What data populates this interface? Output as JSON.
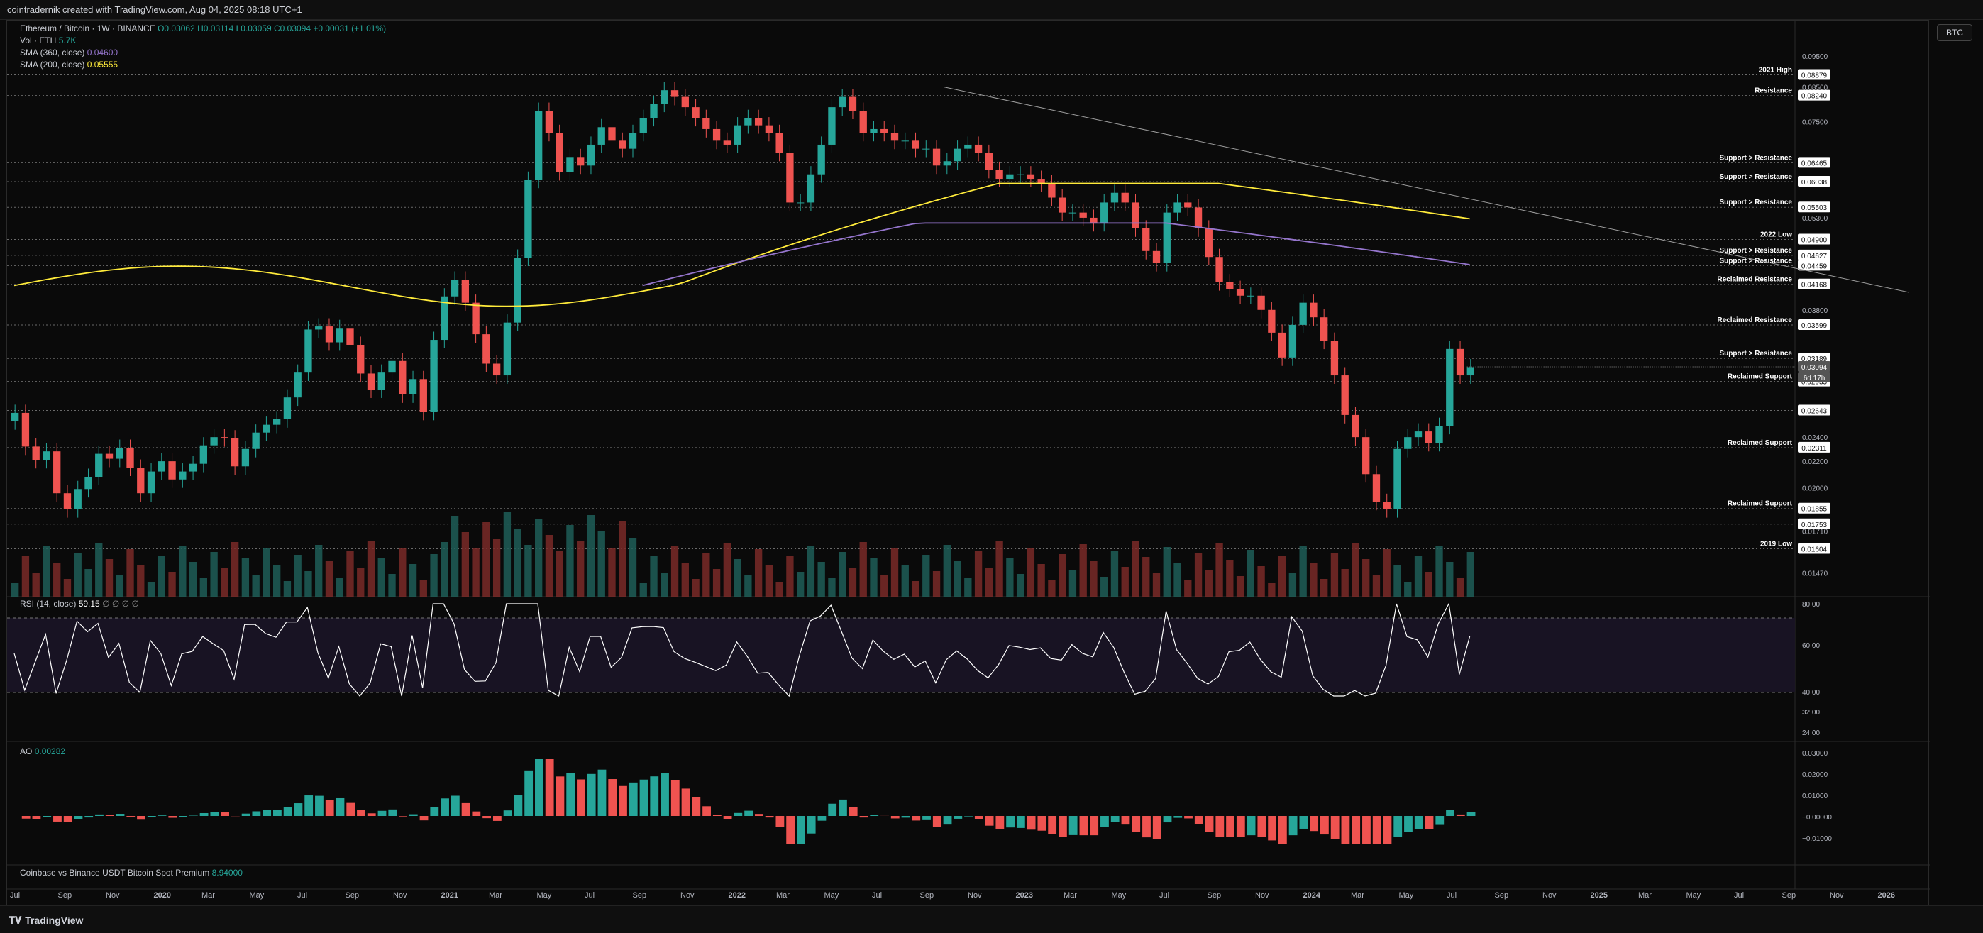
{
  "header": {
    "title": "cointradernik created with TradingView.com, Aug 04, 2025 08:18 UTC+1"
  },
  "legend": {
    "symbol": "Ethereum / Bitcoin · 1W · BINANCE",
    "ohlc": "O0.03062  H0.03114  L0.03059  C0.03094  +0.00031 (+1.01%)",
    "vol_label": "Vol · ETH",
    "vol_value": "5.7K",
    "sma360_label": "SMA (360, close)",
    "sma360_value": "0.04600",
    "sma200_label": "SMA (200, close)",
    "sma200_value": "0.05555"
  },
  "rsi_legend": "RSI (14, close)",
  "rsi_value": "59.15",
  "rsi_extra": "∅ ∅ ∅ ∅",
  "ao_legend": "AO",
  "ao_value": "0.00282",
  "premium_legend": "Coinbase vs Binance USDT Bitcoin Spot Premium",
  "premium_value": "8.94000",
  "btc_button": "BTC",
  "countdown": "6d 17h",
  "footer_logo": "TradingView",
  "colors": {
    "up": "#26a69a",
    "down": "#ef5350",
    "sma200": "#ffeb3b",
    "sma360": "#9575cd",
    "rsi": "#ffffff",
    "background": "#0a0a0a"
  },
  "chart_data": {
    "type": "candlestick",
    "title": "Ethereum / Bitcoin · 1W · BINANCE",
    "x_ticks": [
      "Jul",
      "Sep",
      "Nov",
      "2020",
      "Mar",
      "May",
      "Jul",
      "Sep",
      "Nov",
      "2021",
      "Mar",
      "May",
      "Jul",
      "Sep",
      "Nov",
      "2022",
      "Mar",
      "May",
      "Jul",
      "Sep",
      "Nov",
      "2023",
      "Mar",
      "May",
      "Jul",
      "Sep",
      "Nov",
      "2024",
      "Mar",
      "May",
      "Jul",
      "Sep",
      "Nov",
      "2025",
      "Mar",
      "May",
      "Jul",
      "Sep",
      "Nov",
      "2026"
    ],
    "y_ticks": [
      "0.09500",
      "0.08500",
      "0.07500",
      "0.05300",
      "0.03800",
      "0.02400",
      "0.02200",
      "0.02000",
      "0.01710",
      "0.01470"
    ],
    "price_levels": [
      {
        "label": "2021 High",
        "value": "0.08879"
      },
      {
        "label": "Resistance",
        "value": "0.08240"
      },
      {
        "label": "Support > Resistance",
        "value": "0.06465"
      },
      {
        "label": "Support > Resistance",
        "value": "0.06038"
      },
      {
        "label": "Support > Resistance",
        "value": "0.05503"
      },
      {
        "label": "2022 Low",
        "value": "0.04900"
      },
      {
        "label": "Support > Resistance",
        "value": "0.04627"
      },
      {
        "label": "Support > Resistance",
        "value": "0.04459"
      },
      {
        "label": "Reclaimed Resistance",
        "value": "0.04168"
      },
      {
        "label": "Reclaimed Resistance",
        "value": "0.03599"
      },
      {
        "label": "Support > Resistance",
        "value": "0.03189"
      },
      {
        "label": "Reclaimed Support",
        "value": "0.02935"
      },
      {
        "label": "",
        "value": "0.02643"
      },
      {
        "label": "Reclaimed Support",
        "value": "0.02311"
      },
      {
        "label": "Reclaimed Support",
        "value": "0.01855"
      },
      {
        "label": "",
        "value": "0.01753"
      },
      {
        "label": "2019 Low",
        "value": "0.01604"
      }
    ],
    "current_price": "0.03094",
    "close_path": [
      0.0262,
      0.0232,
      0.0221,
      0.0228,
      0.0196,
      0.0185,
      0.0199,
      0.0208,
      0.0226,
      0.0222,
      0.0231,
      0.0215,
      0.0196,
      0.0212,
      0.022,
      0.0206,
      0.0212,
      0.0218,
      0.0233,
      0.024,
      0.0239,
      0.0216,
      0.023,
      0.0244,
      0.0251,
      0.0256,
      0.0277,
      0.0303,
      0.0354,
      0.0358,
      0.0338,
      0.0356,
      0.0335,
      0.0302,
      0.0285,
      0.0303,
      0.0316,
      0.028,
      0.0296,
      0.0263,
      0.0341,
      0.0399,
      0.0424,
      0.039,
      0.0348,
      0.0313,
      0.03,
      0.0363,
      0.0459,
      0.0608,
      0.078,
      0.072,
      0.0625,
      0.066,
      0.064,
      0.069,
      0.0735,
      0.07,
      0.068,
      0.072,
      0.076,
      0.08,
      0.084,
      0.082,
      0.079,
      0.076,
      0.073,
      0.07,
      0.069,
      0.074,
      0.076,
      0.074,
      0.072,
      0.067,
      0.056,
      0.056,
      0.062,
      0.069,
      0.079,
      0.082,
      0.078,
      0.072,
      0.073,
      0.072,
      0.07,
      0.07,
      0.068,
      0.068,
      0.064,
      0.065,
      0.068,
      0.069,
      0.067,
      0.063,
      0.061,
      0.062,
      0.062,
      0.061,
      0.06,
      0.057,
      0.054,
      0.054,
      0.053,
      0.052,
      0.056,
      0.058,
      0.056,
      0.051,
      0.047,
      0.045,
      0.054,
      0.056,
      0.055,
      0.051,
      0.046,
      0.042,
      0.041,
      0.04,
      0.04,
      0.038,
      0.035,
      0.032,
      0.036,
      0.039,
      0.037,
      0.034,
      0.03,
      0.026,
      0.024,
      0.021,
      0.019,
      0.0185,
      0.023,
      0.024,
      0.0245,
      0.0235,
      0.025,
      0.033,
      0.03,
      0.0309
    ]
  }
}
